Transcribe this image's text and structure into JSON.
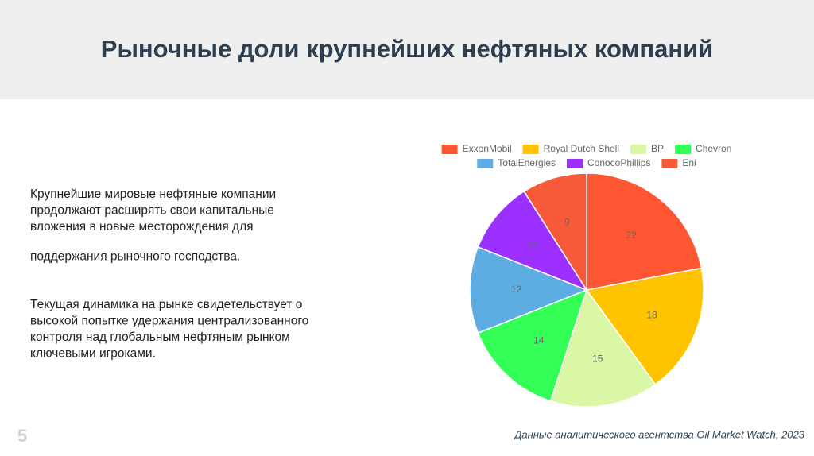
{
  "header": {
    "title": "Рыночные доли крупнейших нефтяных компаний"
  },
  "body": {
    "paragraphs": [
      [
        "Крупнейшие мировые нефтяные компании",
        "продолжают расширять свои капитальные",
        "вложения в новые месторождения для"
      ],
      [
        "поддержания рыночного господства."
      ],
      [
        "Текущая динамика на рынке свидетельствует о",
        "высокой попытке удержания централизованного",
        "контроля над глобальным нефтяным рынком",
        "ключевыми игроками."
      ]
    ]
  },
  "chart_data": {
    "type": "pie",
    "categories": [
      "ExxonMobil",
      "Royal Dutch Shell",
      "BP",
      "Chevron",
      "TotalEnergies",
      "ConocoPhillips",
      "Eni"
    ],
    "values": [
      22,
      18,
      15,
      14,
      12,
      10,
      9
    ],
    "colors": [
      "#ff5733",
      "#ffc300",
      "#daf7a6",
      "#33ff57",
      "#5dade2",
      "#9b30ff",
      "#f65a38"
    ]
  },
  "footer": {
    "page_number": "5",
    "source": "Данные аналитического агентства Oil Market Watch, 2023"
  }
}
